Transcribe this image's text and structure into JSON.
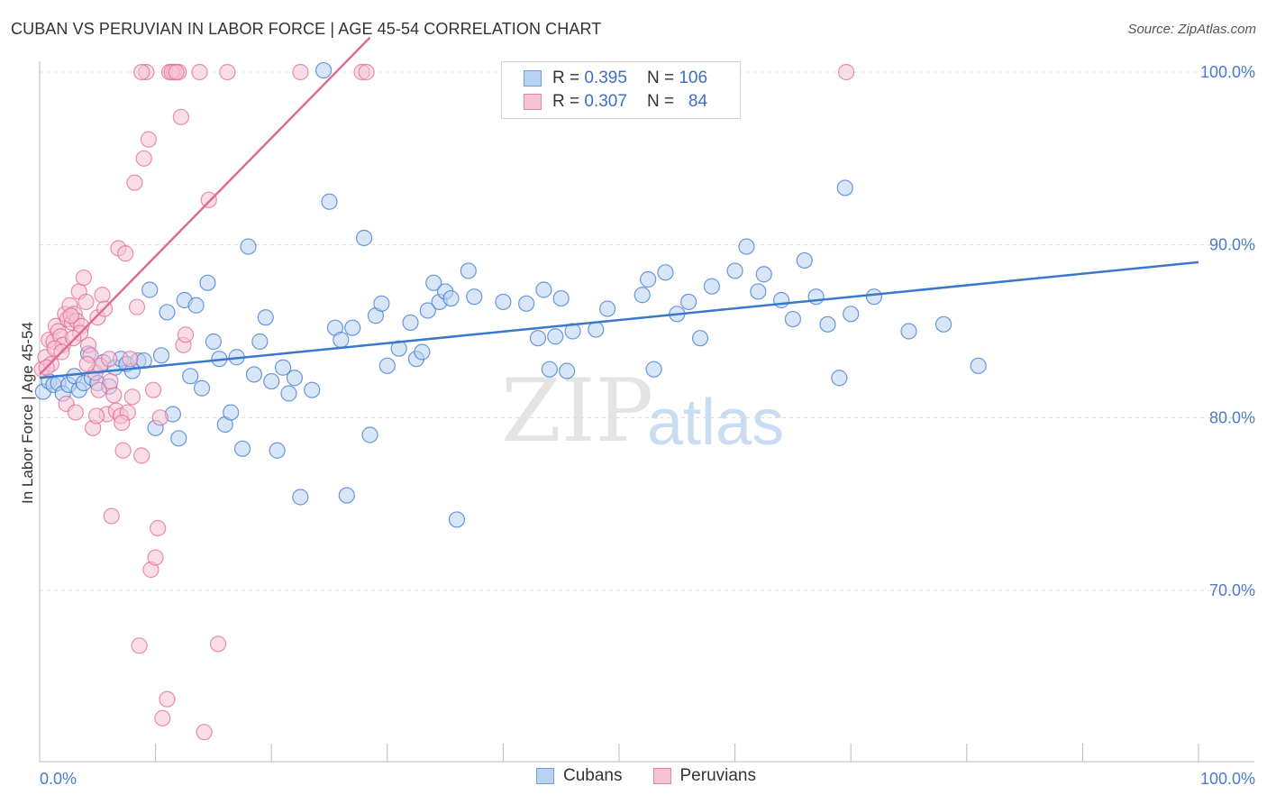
{
  "header": {
    "title": "CUBAN VS PERUVIAN IN LABOR FORCE | AGE 45-54 CORRELATION CHART",
    "source": "Source: ZipAtlas.com"
  },
  "watermark": {
    "zip": "ZIP",
    "atlas": "atlas"
  },
  "legend": {
    "rows": [
      {
        "r_label": "R =",
        "r_value": "0.395",
        "n_label": "N =",
        "n_value": "106",
        "color": "#6d9ee0",
        "fill": "#b9d1f3"
      },
      {
        "r_label": "R =",
        "r_value": "0.307",
        "n_label": "N =",
        "n_value": "84",
        "color": "#e784a8",
        "fill": "#f6c3d4"
      }
    ]
  },
  "bottom_legend": {
    "items": [
      "Cubans",
      "Peruvians"
    ]
  },
  "chart_data": {
    "type": "scatter",
    "title": "CUBAN VS PERUVIAN IN LABOR FORCE | AGE 45-54 CORRELATION CHART",
    "xlabel": "",
    "ylabel": "In Labor Force | Age 45-54",
    "xlim": [
      0,
      100
    ],
    "ylim": [
      60,
      102
    ],
    "x_tick_labels": [
      "0.0%",
      "100.0%"
    ],
    "y_ticks": [
      70,
      80,
      90,
      100
    ],
    "y_tick_labels": [
      "70.0%",
      "80.0%",
      "90.0%",
      "100.0%"
    ],
    "grid": true,
    "legend_position": "top-center",
    "series": [
      {
        "name": "Cubans",
        "color": "#3a78cf",
        "fill": "#b9d1f3",
        "trend": {
          "x": [
            0,
            100
          ],
          "y": [
            82.3,
            89.0
          ]
        },
        "points": [
          [
            0.3,
            81.5
          ],
          [
            0.8,
            82.1
          ],
          [
            1.2,
            81.9
          ],
          [
            1.6,
            82.0
          ],
          [
            2.0,
            81.4
          ],
          [
            2.5,
            81.9
          ],
          [
            3.0,
            82.4
          ],
          [
            3.4,
            81.6
          ],
          [
            3.8,
            82.0
          ],
          [
            4.2,
            83.7
          ],
          [
            4.5,
            82.3
          ],
          [
            5.0,
            82.0
          ],
          [
            5.5,
            83.2
          ],
          [
            6.0,
            81.8
          ],
          [
            6.5,
            82.9
          ],
          [
            7.0,
            83.4
          ],
          [
            7.5,
            83.1
          ],
          [
            8.0,
            82.7
          ],
          [
            8.5,
            83.3
          ],
          [
            9.0,
            83.3
          ],
          [
            9.5,
            87.4
          ],
          [
            10.0,
            79.4
          ],
          [
            10.5,
            83.6
          ],
          [
            11.0,
            86.1
          ],
          [
            11.5,
            80.2
          ],
          [
            12.0,
            78.8
          ],
          [
            12.5,
            86.8
          ],
          [
            13.0,
            82.4
          ],
          [
            13.5,
            86.5
          ],
          [
            14.0,
            81.7
          ],
          [
            14.5,
            87.8
          ],
          [
            15.0,
            84.4
          ],
          [
            15.5,
            83.4
          ],
          [
            16.0,
            79.6
          ],
          [
            16.5,
            80.3
          ],
          [
            17.0,
            83.5
          ],
          [
            17.5,
            78.2
          ],
          [
            18.0,
            89.9
          ],
          [
            18.5,
            82.5
          ],
          [
            19.0,
            84.4
          ],
          [
            19.5,
            85.8
          ],
          [
            20.0,
            82.1
          ],
          [
            20.5,
            78.1
          ],
          [
            21.0,
            82.9
          ],
          [
            21.5,
            81.4
          ],
          [
            22.0,
            82.3
          ],
          [
            22.5,
            75.4
          ],
          [
            23.5,
            81.6
          ],
          [
            24.5,
            100.1
          ],
          [
            25.0,
            92.5
          ],
          [
            25.5,
            85.2
          ],
          [
            26.0,
            84.5
          ],
          [
            26.5,
            75.5
          ],
          [
            27.0,
            85.2
          ],
          [
            28.0,
            90.4
          ],
          [
            28.5,
            79.0
          ],
          [
            29.0,
            85.9
          ],
          [
            29.5,
            86.6
          ],
          [
            30.0,
            83.0
          ],
          [
            31.0,
            84.0
          ],
          [
            32.0,
            85.5
          ],
          [
            32.5,
            83.4
          ],
          [
            33.0,
            83.8
          ],
          [
            33.5,
            86.2
          ],
          [
            34.0,
            87.8
          ],
          [
            34.5,
            86.7
          ],
          [
            35.0,
            87.3
          ],
          [
            35.5,
            86.9
          ],
          [
            36.0,
            74.1
          ],
          [
            37.0,
            88.5
          ],
          [
            37.5,
            87.0
          ],
          [
            40.0,
            86.7
          ],
          [
            42.0,
            86.6
          ],
          [
            43.0,
            84.6
          ],
          [
            43.5,
            87.4
          ],
          [
            44.0,
            82.8
          ],
          [
            44.5,
            84.7
          ],
          [
            45.0,
            86.9
          ],
          [
            45.5,
            82.7
          ],
          [
            46.0,
            85.0
          ],
          [
            48.0,
            85.1
          ],
          [
            49.0,
            86.3
          ],
          [
            52.0,
            87.1
          ],
          [
            52.5,
            88.0
          ],
          [
            53.0,
            82.8
          ],
          [
            54.0,
            88.4
          ],
          [
            55.0,
            86.0
          ],
          [
            56.0,
            86.7
          ],
          [
            57.0,
            84.6
          ],
          [
            58.0,
            87.6
          ],
          [
            60.0,
            88.5
          ],
          [
            61.0,
            89.9
          ],
          [
            62.0,
            87.3
          ],
          [
            62.5,
            88.3
          ],
          [
            64.0,
            86.8
          ],
          [
            65.0,
            85.7
          ],
          [
            66.0,
            89.1
          ],
          [
            67.0,
            87.0
          ],
          [
            68.0,
            85.4
          ],
          [
            69.0,
            82.3
          ],
          [
            69.5,
            93.3
          ],
          [
            70.0,
            86.0
          ],
          [
            72.0,
            87.0
          ],
          [
            75.0,
            85.0
          ],
          [
            78.0,
            85.4
          ],
          [
            81.0,
            83.0
          ]
        ]
      },
      {
        "name": "Peruvians",
        "color": "#e06a96",
        "fill": "#f6c3d4",
        "trend": {
          "x": [
            0,
            28.5
          ],
          "y": [
            82.5,
            102
          ]
        },
        "points": [
          [
            0.2,
            82.8
          ],
          [
            0.5,
            83.5
          ],
          [
            0.8,
            84.5
          ],
          [
            1.0,
            83.1
          ],
          [
            1.2,
            84.4
          ],
          [
            1.4,
            85.3
          ],
          [
            1.6,
            85.0
          ],
          [
            1.8,
            84.7
          ],
          [
            2.0,
            84.2
          ],
          [
            2.2,
            86.0
          ],
          [
            2.4,
            85.7
          ],
          [
            2.6,
            86.5
          ],
          [
            2.8,
            85.5
          ],
          [
            3.0,
            86.0
          ],
          [
            3.2,
            85.6
          ],
          [
            3.4,
            87.3
          ],
          [
            3.6,
            85.3
          ],
          [
            3.8,
            88.1
          ],
          [
            4.0,
            86.7
          ],
          [
            4.2,
            84.2
          ],
          [
            4.4,
            83.6
          ],
          [
            4.6,
            79.4
          ],
          [
            4.8,
            82.6
          ],
          [
            5.0,
            85.8
          ],
          [
            5.2,
            83.0
          ],
          [
            5.4,
            87.1
          ],
          [
            5.6,
            86.3
          ],
          [
            5.8,
            80.2
          ],
          [
            6.0,
            83.4
          ],
          [
            6.2,
            74.3
          ],
          [
            6.4,
            81.3
          ],
          [
            6.6,
            80.4
          ],
          [
            6.8,
            89.8
          ],
          [
            7.0,
            80.1
          ],
          [
            7.2,
            78.1
          ],
          [
            7.4,
            89.5
          ],
          [
            7.6,
            80.3
          ],
          [
            7.8,
            83.4
          ],
          [
            8.0,
            81.2
          ],
          [
            8.2,
            93.6
          ],
          [
            8.4,
            86.4
          ],
          [
            8.6,
            66.8
          ],
          [
            8.8,
            77.8
          ],
          [
            9.0,
            95.0
          ],
          [
            9.2,
            100.0
          ],
          [
            9.6,
            71.2
          ],
          [
            9.8,
            81.6
          ],
          [
            10.0,
            71.9
          ],
          [
            10.2,
            73.6
          ],
          [
            10.6,
            62.6
          ],
          [
            11.0,
            63.7
          ],
          [
            11.2,
            100.0
          ],
          [
            11.6,
            100.0
          ],
          [
            12.0,
            100.0
          ],
          [
            12.2,
            97.4
          ],
          [
            12.4,
            84.2
          ],
          [
            12.6,
            84.8
          ],
          [
            13.8,
            100.0
          ],
          [
            14.2,
            61.8
          ],
          [
            14.6,
            92.6
          ],
          [
            15.4,
            66.9
          ],
          [
            16.2,
            100.0
          ],
          [
            22.5,
            100.0
          ],
          [
            27.8,
            100.0
          ],
          [
            28.2,
            100.0
          ],
          [
            69.6,
            100.0
          ],
          [
            2.3,
            80.8
          ],
          [
            3.1,
            80.3
          ],
          [
            4.9,
            80.1
          ],
          [
            6.1,
            82.1
          ],
          [
            1.3,
            84.0
          ],
          [
            2.7,
            85.9
          ],
          [
            3.5,
            84.9
          ],
          [
            0.6,
            82.9
          ],
          [
            1.9,
            83.8
          ],
          [
            2.9,
            84.6
          ],
          [
            4.1,
            83.1
          ],
          [
            5.1,
            81.6
          ],
          [
            7.1,
            79.7
          ],
          [
            9.4,
            96.1
          ],
          [
            10.4,
            80.0
          ],
          [
            11.4,
            100.0
          ],
          [
            8.8,
            100.0
          ],
          [
            11.8,
            100.0
          ]
        ]
      }
    ]
  }
}
